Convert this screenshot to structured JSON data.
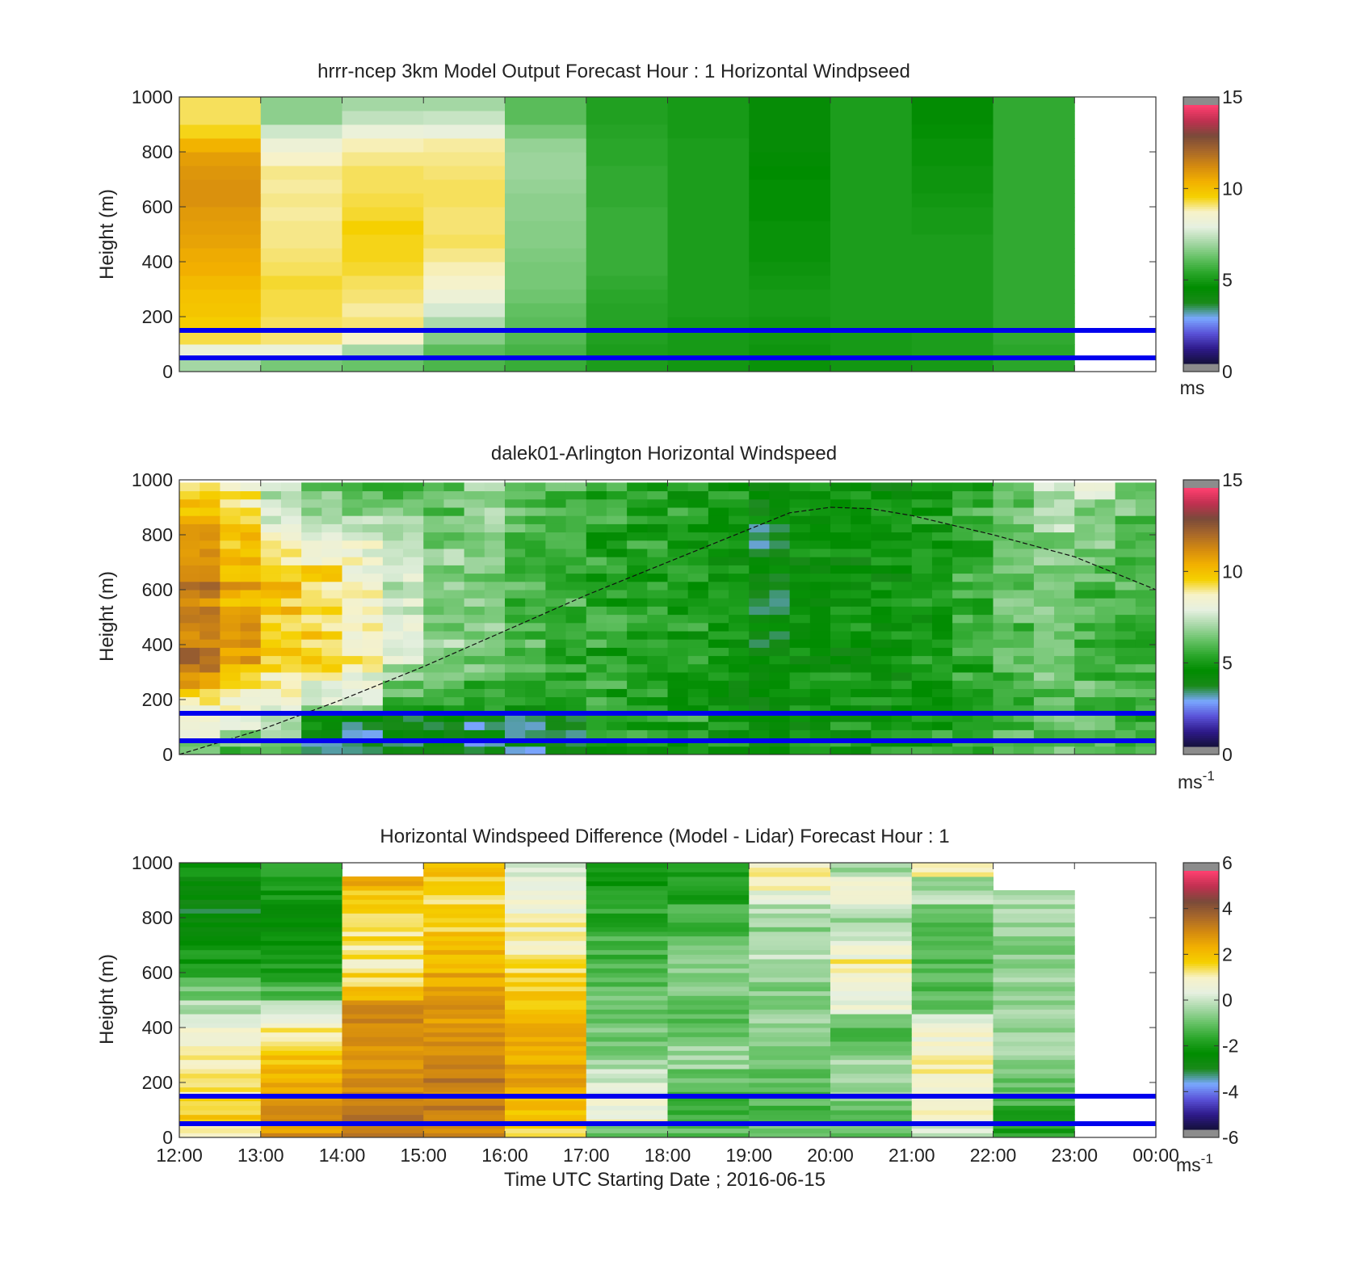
{
  "colors": {
    "speed_colormap": [
      "#14103a",
      "#2e1a8a",
      "#5a52d8",
      "#7aa8ff",
      "#1a8a1a",
      "#008c00",
      "#2aa62a",
      "#66c266",
      "#a8d8a8",
      "#e6f0e0",
      "#f7f2c8",
      "#f5d000",
      "#f2b000",
      "#d48a10",
      "#a8682a",
      "#7a4a3a",
      "#c03050",
      "#ff4070"
    ],
    "diff_colormap": [
      "#14103a",
      "#2e1a8a",
      "#5a52d8",
      "#7aa8ff",
      "#1a8a1a",
      "#008c00",
      "#2aa62a",
      "#66c266",
      "#a8d8a8",
      "#e6f0e0",
      "#f7f2c8",
      "#f5d000",
      "#f2b000",
      "#d48a10",
      "#a8682a",
      "#7a4a3a",
      "#c03050",
      "#ff4070"
    ],
    "line": "#0000ee",
    "colorbar_cap": "#8c8c8c"
  },
  "chart_data": [
    {
      "type": "heatmap",
      "title": "hrrr-ncep 3km Model Output   Forecast Hour : 1 Horizontal Windpseed",
      "ylabel": "Height (m)",
      "ylim": [
        0,
        1000
      ],
      "yticks": [
        "0",
        "200",
        "400",
        "600",
        "800",
        "1000"
      ],
      "xlim": [
        "12:00",
        "00:00"
      ],
      "x": [
        "12:00",
        "13:00",
        "14:00",
        "15:00",
        "16:00",
        "17:00",
        "18:00",
        "19:00",
        "20:00",
        "21:00",
        "22:00"
      ],
      "heights": [
        25,
        75,
        125,
        175,
        225,
        275,
        325,
        375,
        425,
        475,
        525,
        575,
        625,
        675,
        725,
        775,
        825,
        875,
        925,
        975
      ],
      "z": [
        [
          7.0,
          8.2,
          9.4,
          9.8,
          10.0,
          10.1,
          10.3,
          10.6,
          10.7,
          10.9,
          11.0,
          11.1,
          11.3,
          11.3,
          11.2,
          11.0,
          10.5,
          9.6,
          9.3,
          9.3
        ],
        [
          6.4,
          8.2,
          9.2,
          9.3,
          9.4,
          9.4,
          9.5,
          9.3,
          9.2,
          9.1,
          9.1,
          9.0,
          9.1,
          9.0,
          9.1,
          8.8,
          8.3,
          7.6,
          6.7,
          6.7
        ],
        [
          6.2,
          7.0,
          8.8,
          9.2,
          9.0,
          9.2,
          9.3,
          9.5,
          9.6,
          9.6,
          9.7,
          9.5,
          9.4,
          9.3,
          9.3,
          9.1,
          8.9,
          8.2,
          7.4,
          7.0
        ],
        [
          5.8,
          6.0,
          6.6,
          7.1,
          7.7,
          8.3,
          8.7,
          8.9,
          9.1,
          9.3,
          9.2,
          9.2,
          9.3,
          9.3,
          9.2,
          9.1,
          9.0,
          8.1,
          7.5,
          7.0
        ],
        [
          5.5,
          5.7,
          5.9,
          6.0,
          6.1,
          6.3,
          6.4,
          6.4,
          6.5,
          6.6,
          6.6,
          6.7,
          6.7,
          6.8,
          6.9,
          6.9,
          6.8,
          6.4,
          6.0,
          6.0
        ],
        [
          5.0,
          5.0,
          5.1,
          5.2,
          5.2,
          5.3,
          5.4,
          5.5,
          5.5,
          5.5,
          5.5,
          5.5,
          5.4,
          5.4,
          5.4,
          5.3,
          5.3,
          5.2,
          5.1,
          5.1
        ],
        [
          4.8,
          4.9,
          4.9,
          4.9,
          5.0,
          5.0,
          5.0,
          5.0,
          5.0,
          5.0,
          5.0,
          5.0,
          5.0,
          5.0,
          5.0,
          5.0,
          5.0,
          4.9,
          4.9,
          4.9
        ],
        [
          4.6,
          4.7,
          4.8,
          4.8,
          4.9,
          4.9,
          4.8,
          4.7,
          4.6,
          4.6,
          4.6,
          4.5,
          4.5,
          4.5,
          4.4,
          4.3,
          4.2,
          4.2,
          4.2,
          4.2
        ],
        [
          4.8,
          4.9,
          4.9,
          5.0,
          5.0,
          5.0,
          5.0,
          5.0,
          5.0,
          5.0,
          5.0,
          5.0,
          5.0,
          5.0,
          5.0,
          5.0,
          5.0,
          5.0,
          5.0,
          5.0
        ],
        [
          4.9,
          5.0,
          5.0,
          5.0,
          5.0,
          5.0,
          5.0,
          5.0,
          5.0,
          5.0,
          4.9,
          4.9,
          4.8,
          4.7,
          4.7,
          4.6,
          4.6,
          4.5,
          4.3,
          4.3
        ],
        [
          5.3,
          5.3,
          5.4,
          5.4,
          5.4,
          5.4,
          5.4,
          5.4,
          5.4,
          5.4,
          5.4,
          5.4,
          5.4,
          5.4,
          5.4,
          5.4,
          5.4,
          5.4,
          5.4,
          5.4
        ]
      ],
      "hlines": [
        50,
        150
      ],
      "colorbar": {
        "range": [
          0,
          15
        ],
        "ticks": [
          "0",
          "5",
          "10",
          "15"
        ],
        "unit": "ms"
      }
    },
    {
      "type": "heatmap",
      "title": "dalek01-Arlington  Horizontal Windspeed",
      "ylabel": "Height (m)",
      "ylim": [
        0,
        1000
      ],
      "yticks": [
        "0",
        "200",
        "400",
        "600",
        "800",
        "1000"
      ],
      "xlim": [
        "12:00",
        "00:00"
      ],
      "heights": [
        15,
        45,
        75,
        105,
        135,
        165,
        195,
        225,
        255,
        285,
        315,
        345,
        375,
        405,
        435,
        465,
        495,
        525,
        555,
        585,
        615,
        645,
        675,
        705,
        735,
        765,
        795,
        825,
        855,
        885,
        915,
        945,
        975
      ],
      "profiles": [
        {
          "t": "12:00",
          "base": 6.5,
          "peak": 11.8,
          "top": 9.5
        },
        {
          "t": "12:30",
          "base": 6.0,
          "peak": 10.8,
          "top": 8.5
        },
        {
          "t": "13:00",
          "base": 5.5,
          "peak": 10.0,
          "top": 7.0
        },
        {
          "t": "13:30",
          "base": 5.0,
          "peak": 9.5,
          "top": 6.0
        },
        {
          "t": "14:00",
          "base": 4.5,
          "peak": 9.0,
          "top": 5.5
        },
        {
          "t": "14:30",
          "base": 3.5,
          "peak": 7.5,
          "top": 5.5
        },
        {
          "t": "15:00",
          "base": 3.0,
          "peak": 6.8,
          "top": 6.0
        },
        {
          "t": "15:30",
          "base": 3.0,
          "peak": 6.5,
          "top": 6.8
        },
        {
          "t": "16:00",
          "base": 4.0,
          "peak": 5.8,
          "top": 6.0
        },
        {
          "t": "16:30",
          "base": 4.5,
          "peak": 5.5,
          "top": 5.5
        },
        {
          "t": "17:00",
          "base": 5.0,
          "peak": 5.2,
          "top": 5.3
        },
        {
          "t": "17:30",
          "base": 5.0,
          "peak": 5.0,
          "top": 5.0
        },
        {
          "t": "18:00",
          "base": 5.0,
          "peak": 5.0,
          "top": 5.0
        },
        {
          "t": "18:30",
          "base": 4.8,
          "peak": 4.8,
          "top": 4.6
        },
        {
          "t": "19:00",
          "base": 4.5,
          "peak": 3.8,
          "top": 3.8
        },
        {
          "t": "19:30",
          "base": 4.6,
          "peak": 4.5,
          "top": 4.6
        },
        {
          "t": "20:00",
          "base": 4.8,
          "peak": 4.6,
          "top": 4.3
        },
        {
          "t": "20:30",
          "base": 4.8,
          "peak": 4.5,
          "top": 4.2
        },
        {
          "t": "21:00",
          "base": 5.0,
          "peak": 5.0,
          "top": 4.6
        },
        {
          "t": "21:30",
          "base": 5.2,
          "peak": 5.4,
          "top": 5.3
        },
        {
          "t": "22:00",
          "base": 5.8,
          "peak": 6.0,
          "top": 6.5
        },
        {
          "t": "22:30",
          "base": 6.2,
          "peak": 6.2,
          "top": 7.5
        },
        {
          "t": "23:00",
          "base": 6.2,
          "peak": 5.8,
          "top": 7.5
        },
        {
          "t": "23:30",
          "base": 5.8,
          "peak": 5.5,
          "top": 6.5
        }
      ],
      "boundary_layer_height": [
        [
          "12:00",
          0
        ],
        [
          "13:00",
          90
        ],
        [
          "14:00",
          200
        ],
        [
          "15:00",
          320
        ],
        [
          "16:00",
          450
        ],
        [
          "17:00",
          580
        ],
        [
          "18:00",
          700
        ],
        [
          "19:00",
          820
        ],
        [
          "19:30",
          880
        ],
        [
          "20:00",
          900
        ],
        [
          "20:30",
          895
        ],
        [
          "21:00",
          870
        ],
        [
          "22:00",
          800
        ],
        [
          "23:00",
          720
        ],
        [
          "00:00",
          600
        ]
      ],
      "hlines": [
        50,
        150
      ],
      "colorbar": {
        "range": [
          0,
          15
        ],
        "ticks": [
          "0",
          "5",
          "10",
          "15"
        ],
        "unit": "ms",
        "unit_sup": "-1"
      }
    },
    {
      "type": "heatmap",
      "title": "Horizontal Windspeed Difference (Model - Lidar) Forecast Hour : 1",
      "ylabel": "Height (m)",
      "xlabel": "Time UTC  Starting Date ; 2016-06-15",
      "ylim": [
        0,
        1000
      ],
      "yticks": [
        "0",
        "200",
        "400",
        "600",
        "800",
        "1000"
      ],
      "xlim": [
        "12:00",
        "00:00"
      ],
      "xticks": [
        "12:00",
        "13:00",
        "14:00",
        "15:00",
        "16:00",
        "17:00",
        "18:00",
        "19:00",
        "20:00",
        "21:00",
        "22:00",
        "23:00",
        "00:00"
      ],
      "heights": [
        25,
        75,
        125,
        175,
        225,
        275,
        325,
        375,
        425,
        475,
        525,
        575,
        625,
        675,
        725,
        775,
        825,
        875,
        925,
        975
      ],
      "z": [
        [
          1.5,
          1.8,
          1.5,
          1.2,
          1.2,
          1.0,
          0.8,
          0.6,
          0.3,
          -0.2,
          -1.0,
          -1.5,
          -2.0,
          -2.2,
          -2.5,
          -2.8,
          -3.0,
          -2.8,
          -2.5,
          -2.0
        ],
        [
          3.0,
          3.0,
          3.0,
          2.8,
          2.5,
          2.0,
          1.6,
          1.2,
          0.8,
          0.0,
          -1.2,
          -1.8,
          -2.0,
          -2.2,
          -2.2,
          -2.5,
          -2.5,
          -2.2,
          -1.8,
          -1.5
        ],
        [
          3.5,
          3.5,
          3.3,
          3.2,
          3.0,
          3.0,
          3.2,
          3.4,
          3.4,
          3.0,
          2.0,
          1.6,
          1.3,
          1.3,
          1.5,
          1.5,
          1.6,
          2.0,
          2.5,
          null
        ],
        [
          3.0,
          3.2,
          3.4,
          3.5,
          3.5,
          3.5,
          3.2,
          3.0,
          3.0,
          3.0,
          2.8,
          2.6,
          2.4,
          2.2,
          2.0,
          1.8,
          1.6,
          1.6,
          1.8,
          2.0
        ],
        [
          1.5,
          2.0,
          2.2,
          2.5,
          2.6,
          2.6,
          2.5,
          2.4,
          2.3,
          2.0,
          1.8,
          1.7,
          1.5,
          1.3,
          1.1,
          1.0,
          0.8,
          0.6,
          0.3,
          0.0
        ],
        [
          -1.0,
          0.8,
          0.6,
          0.3,
          0.0,
          -0.5,
          -0.8,
          -0.9,
          -1.0,
          -1.0,
          -1.1,
          -1.2,
          -1.3,
          -1.4,
          -1.5,
          -1.7,
          -1.8,
          -2.0,
          -2.2,
          -2.3
        ],
        [
          -1.2,
          -1.4,
          -1.5,
          -1.3,
          -1.0,
          -0.5,
          -0.6,
          -0.9,
          -1.2,
          -1.0,
          -0.8,
          -0.6,
          -0.8,
          -1.0,
          -1.2,
          -1.4,
          -1.6,
          -1.8,
          -2.0,
          -2.2
        ],
        [
          -1.0,
          -1.2,
          -1.3,
          -1.3,
          -1.2,
          -1.0,
          -0.8,
          -0.6,
          -0.5,
          -0.7,
          -0.8,
          -0.6,
          -0.3,
          -0.2,
          -0.4,
          -0.6,
          -0.2,
          0.3,
          0.8,
          1.2
        ],
        [
          -1.0,
          -1.0,
          -0.8,
          -0.6,
          -0.3,
          -0.2,
          -0.8,
          -1.2,
          -1.0,
          0.5,
          0.8,
          1.0,
          1.2,
          0.6,
          0.2,
          -0.4,
          0.0,
          0.8,
          1.0,
          -0.4
        ],
        [
          0.0,
          0.8,
          1.0,
          1.0,
          1.2,
          1.2,
          1.0,
          0.8,
          0.6,
          -1.0,
          -1.2,
          -1.3,
          -1.4,
          -1.5,
          -1.4,
          -1.2,
          -0.8,
          -0.3,
          -0.3,
          1.2
        ],
        [
          -2.0,
          -1.8,
          -1.5,
          -1.2,
          -1.0,
          -0.8,
          -0.6,
          -0.5,
          -0.4,
          -0.6,
          -0.5,
          -0.5,
          -0.6,
          -0.7,
          -0.6,
          -0.4,
          -0.3,
          -0.2,
          null,
          null
        ]
      ],
      "hlines": [
        50,
        150
      ],
      "colorbar": {
        "range": [
          -6,
          6
        ],
        "ticks": [
          "-6",
          "-4",
          "-2",
          "0",
          "2",
          "4",
          "6"
        ],
        "unit": "ms",
        "unit_sup": "-1"
      }
    }
  ]
}
